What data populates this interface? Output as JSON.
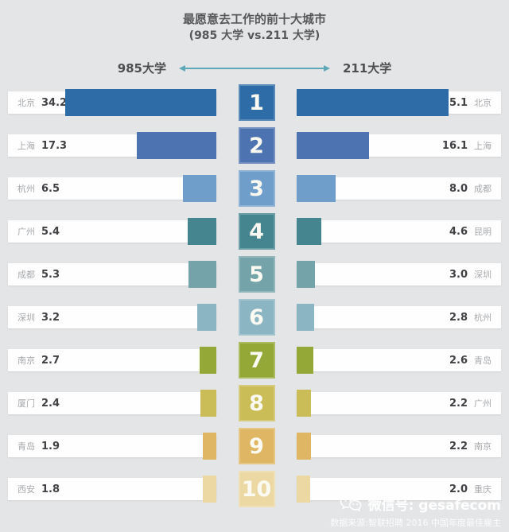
{
  "title": {
    "line1": "最愿意去工作的前十大城市",
    "line2": "(985 大学 vs.211 大学)"
  },
  "header": {
    "left_label": "985大学",
    "right_label": "211大学",
    "arrow_color": "#5ea8b8"
  },
  "chart_data": {
    "type": "bar",
    "subtype": "tornado-ranking",
    "max_value": 35.1,
    "legend": [
      "985大学",
      "211大学"
    ],
    "series": [
      {
        "name": "985大学",
        "cities": [
          "北京",
          "上海",
          "杭州",
          "广州",
          "成都",
          "深圳",
          "南京",
          "厦门",
          "青岛",
          "西安"
        ],
        "values": [
          34.2,
          17.3,
          6.5,
          5.4,
          5.3,
          3.2,
          2.7,
          2.4,
          1.9,
          1.8
        ]
      },
      {
        "name": "211大学",
        "cities": [
          "北京",
          "上海",
          "成都",
          "昆明",
          "深圳",
          "杭州",
          "青岛",
          "广州",
          "南京",
          "重庆"
        ],
        "values": [
          35.1,
          16.1,
          8.0,
          4.6,
          3.0,
          2.8,
          2.6,
          2.2,
          2.2,
          2.0
        ]
      }
    ],
    "rows": [
      {
        "rank": "1",
        "left_city": "北京",
        "left_value": "34.2",
        "right_value": "35.1",
        "right_city": "北京",
        "color": "#2d6ca6"
      },
      {
        "rank": "2",
        "left_city": "上海",
        "left_value": "17.3",
        "right_value": "16.1",
        "right_city": "上海",
        "color": "#4e73b1"
      },
      {
        "rank": "3",
        "left_city": "杭州",
        "left_value": "6.5",
        "right_value": "8.0",
        "right_city": "成都",
        "color": "#6f9ecb"
      },
      {
        "rank": "4",
        "left_city": "广州",
        "left_value": "5.4",
        "right_value": "4.6",
        "right_city": "昆明",
        "color": "#44858f"
      },
      {
        "rank": "5",
        "left_city": "成都",
        "left_value": "5.3",
        "right_value": "3.0",
        "right_city": "深圳",
        "color": "#74a4aa"
      },
      {
        "rank": "6",
        "left_city": "深圳",
        "left_value": "3.2",
        "right_value": "2.8",
        "right_city": "杭州",
        "color": "#8bb5c2"
      },
      {
        "rank": "7",
        "left_city": "南京",
        "left_value": "2.7",
        "right_value": "2.6",
        "right_city": "青岛",
        "color": "#93a837"
      },
      {
        "rank": "8",
        "left_city": "厦门",
        "left_value": "2.4",
        "right_value": "2.2",
        "right_city": "广州",
        "color": "#cabd58"
      },
      {
        "rank": "9",
        "left_city": "青岛",
        "left_value": "1.9",
        "right_value": "2.2",
        "right_city": "南京",
        "color": "#dfb663"
      },
      {
        "rank": "10",
        "left_city": "西安",
        "left_value": "1.8",
        "right_value": "2.0",
        "right_city": "重庆",
        "color": "#ecd8a3"
      }
    ],
    "background_color": "#e4e5e7",
    "track_color": "#fefefe"
  },
  "footer": {
    "wechat_label": "微信号: gesafecom",
    "source": "数据来源:智联招聘 2016 中国年度最佳雇主"
  }
}
